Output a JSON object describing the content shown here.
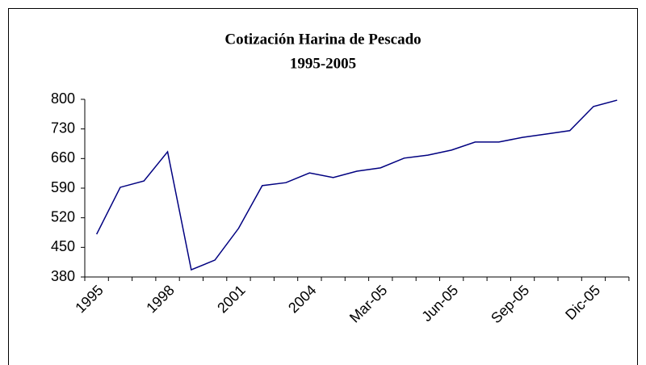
{
  "chart_data": {
    "type": "line",
    "title": [
      "Cotización Harina de Pescado",
      "1995-2005"
    ],
    "categories": [
      "1995",
      null,
      null,
      "1998",
      null,
      null,
      "2001",
      null,
      null,
      "2004",
      null,
      null,
      "Mar-05",
      null,
      null,
      "Jun-05",
      null,
      null,
      "Sep-05",
      null,
      null,
      "Dic-05",
      null
    ],
    "series": [
      {
        "color": "#000080",
        "values": [
          481,
          592,
          607,
          676,
          397,
          420,
          495,
          596,
          603,
          626,
          615,
          630,
          638,
          661,
          668,
          680,
          699,
          699,
          710,
          718,
          726,
          783,
          798
        ]
      }
    ],
    "ylim": [
      380,
      800
    ],
    "yticks": [
      380,
      450,
      520,
      590,
      660,
      730,
      800
    ]
  }
}
